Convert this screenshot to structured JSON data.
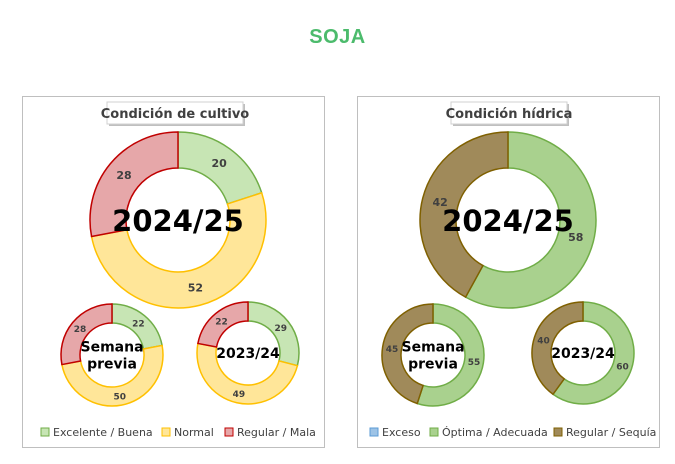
{
  "page": {
    "title": "SOJA"
  },
  "colors": {
    "excelente_fill": "#c7e5b4",
    "excelente_stroke": "#70ad47",
    "normal_fill": "#ffe699",
    "normal_stroke": "#ffc000",
    "regular_fill": "#e6a7a9",
    "regular_stroke": "#c00000",
    "exceso_fill": "#9dc3e6",
    "exceso_stroke": "#5b9bd5",
    "optima_fill": "#a9d18e",
    "optima_stroke": "#70ad47",
    "sequia_fill": "#a08a5a",
    "sequia_stroke": "#7f6000",
    "title_green": "#4cbb6c"
  },
  "chart_data": [
    {
      "type": "donut",
      "title": "Condición de cultivo",
      "legend": [
        "Excelente / Buena",
        "Normal",
        "Regular / Mala"
      ],
      "legend_placement": "bottom",
      "rings": [
        {
          "label": "2024/25",
          "values": [
            20,
            52,
            28
          ]
        },
        {
          "label": "Semana previa",
          "label_lines": [
            "Semana",
            "previa"
          ],
          "values": [
            22,
            50,
            28
          ]
        },
        {
          "label": "2023/24",
          "values": [
            29,
            49,
            22
          ]
        }
      ]
    },
    {
      "type": "donut",
      "title": "Condición hídrica",
      "legend": [
        "Exceso",
        "Óptima / Adecuada",
        "Regular / Sequía"
      ],
      "legend_placement": "bottom",
      "rings": [
        {
          "label": "2024/25",
          "values": [
            0,
            58,
            42
          ]
        },
        {
          "label": "Semana previa",
          "label_lines": [
            "Semana",
            "previa"
          ],
          "values": [
            0,
            55,
            45
          ]
        },
        {
          "label": "2023/24",
          "values": [
            0,
            60,
            40
          ]
        }
      ]
    }
  ]
}
